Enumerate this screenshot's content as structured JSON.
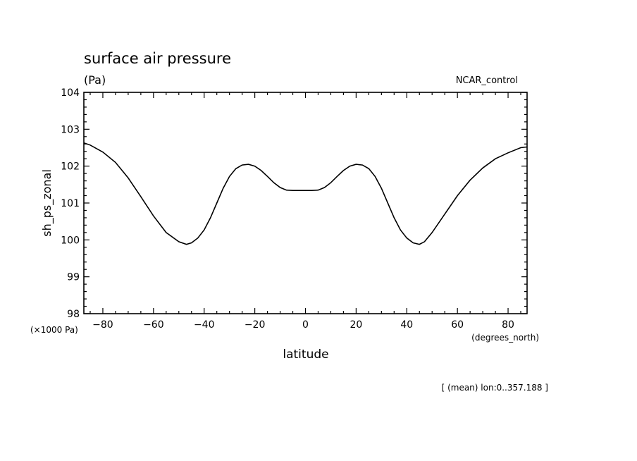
{
  "chart_data": {
    "type": "line",
    "title": "surface air pressure",
    "units_label": "(Pa)",
    "run_label": "NCAR_control",
    "ylabel": "sh_ps_zonal",
    "xlabel": "latitude",
    "y_scale_note": "(×1000 Pa)",
    "x_units_note": "(degrees_north)",
    "footer_note": "[ (mean) lon:0..357.188 ]",
    "xlim": [
      -87.5,
      87.5
    ],
    "ylim": [
      98,
      104
    ],
    "x_ticks": [
      -80,
      -60,
      -40,
      -20,
      0,
      20,
      40,
      60,
      80
    ],
    "x_tick_labels": [
      "−80",
      "−60",
      "−40",
      "−20",
      "0",
      "20",
      "40",
      "60",
      "80"
    ],
    "y_ticks": [
      98,
      99,
      100,
      101,
      102,
      103,
      104
    ],
    "y_tick_labels": [
      "98",
      "99",
      "100",
      "101",
      "102",
      "103",
      "104"
    ],
    "line_color": "#000000",
    "series": [
      {
        "x": [
          -87.5,
          -85,
          -80,
          -75,
          -70,
          -65,
          -60,
          -55,
          -50,
          -47,
          -45,
          -42.5,
          -40,
          -37.5,
          -35,
          -32.5,
          -30,
          -27.5,
          -25,
          -22.5,
          -20,
          -17.5,
          -15,
          -12.5,
          -10,
          -7.5,
          -5,
          -2.5,
          0,
          2.5,
          5,
          7.5,
          10,
          12.5,
          15,
          17.5,
          20,
          22.5,
          25,
          27.5,
          30,
          32.5,
          35,
          37.5,
          40,
          42.5,
          45,
          47,
          50,
          55,
          60,
          65,
          70,
          75,
          80,
          85,
          87.5
        ],
        "y": [
          102.63,
          102.57,
          102.38,
          102.1,
          101.68,
          101.17,
          100.65,
          100.2,
          99.95,
          99.88,
          99.92,
          100.05,
          100.27,
          100.6,
          101.0,
          101.4,
          101.72,
          101.93,
          102.03,
          102.05,
          102.0,
          101.88,
          101.72,
          101.55,
          101.42,
          101.35,
          101.34,
          101.34,
          101.34,
          101.34,
          101.35,
          101.42,
          101.55,
          101.72,
          101.88,
          102.0,
          102.05,
          102.03,
          101.93,
          101.72,
          101.4,
          101.0,
          100.6,
          100.27,
          100.05,
          99.92,
          99.88,
          99.95,
          100.2,
          100.7,
          101.2,
          101.62,
          101.95,
          102.2,
          102.36,
          102.5,
          102.52
        ]
      }
    ]
  }
}
